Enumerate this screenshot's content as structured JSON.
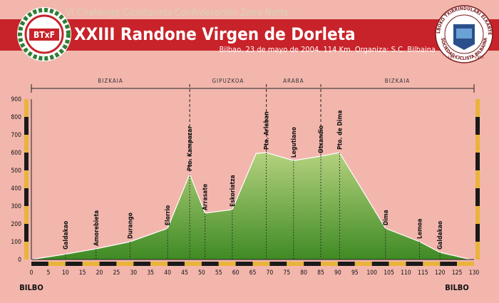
{
  "header": {
    "series_title": "VI Challenge Cicloturista Confederación Zona Norte",
    "event_title": "XXIII Randone Virgen de Dorleta",
    "subtitle": "Bilbao, 23 de mayo de 2004, 114 Km. Organiza: S.C. Bilbaina",
    "left_logo_letters": "BTxF",
    "right_logo_top": "BILBOKO TXIRRINDULARI ELKARTEA",
    "right_logo_bottom": "SOCIEDAD CICLISTA BILBAINA",
    "right_logo_year_left": "1895",
    "right_logo_year_right": "1995"
  },
  "colors": {
    "background": "#f2b6ad",
    "header_red": "#c8232a",
    "header_text": "#ffffff",
    "series_title": "#d8d2b8",
    "profile_fill_top": "#b4d27e",
    "profile_fill_bottom": "#3f8a24",
    "axis_yellow": "#e9b43a",
    "axis_black": "#1a1a1a"
  },
  "chart_data": {
    "type": "area",
    "title": "XXIII Randone Virgen de Dorleta",
    "xlabel": "",
    "ylabel": "",
    "xlim": [
      0,
      130
    ],
    "ylim": [
      0,
      900
    ],
    "x_ticks": [
      0,
      5,
      10,
      15,
      20,
      25,
      30,
      35,
      40,
      45,
      50,
      55,
      60,
      65,
      70,
      75,
      80,
      85,
      90,
      95,
      100,
      105,
      110,
      115,
      120,
      125,
      130
    ],
    "y_ticks": [
      0,
      100,
      200,
      300,
      400,
      500,
      600,
      700,
      800,
      900
    ],
    "grid": false,
    "series": [
      {
        "x": [
          0,
          10,
          19,
          29,
          40,
          46.5,
          51,
          59,
          66,
          69,
          77,
          85,
          90.5,
          104,
          114,
          120,
          129
        ],
        "values": [
          0,
          30,
          60,
          100,
          175,
          480,
          260,
          280,
          595,
          600,
          555,
          580,
          600,
          175,
          100,
          40,
          0
        ]
      }
    ],
    "regions": [
      {
        "name": "BIZKAIA",
        "from": 0,
        "to": 46.5
      },
      {
        "name": "GIPUZKOA",
        "from": 46.5,
        "to": 69
      },
      {
        "name": "ARABA",
        "from": 69,
        "to": 85
      },
      {
        "name": "BIZKAIA",
        "from": 85,
        "to": 130
      }
    ],
    "places": [
      {
        "name": "Galdakao",
        "x": 10,
        "y": 30
      },
      {
        "name": "Amorebieta",
        "x": 19,
        "y": 60
      },
      {
        "name": "Durango",
        "x": 29,
        "y": 100
      },
      {
        "name": "Elorrio",
        "x": 40,
        "y": 175
      },
      {
        "name": "Pto. Kampazar",
        "x": 46.5,
        "y": 480
      },
      {
        "name": "Arrasate",
        "x": 51,
        "y": 260
      },
      {
        "name": "Eskoriatza",
        "x": 59,
        "y": 280
      },
      {
        "name": "Pto. Arlaban",
        "x": 69,
        "y": 600
      },
      {
        "name": "Legutiano",
        "x": 77,
        "y": 555
      },
      {
        "name": "Otxandio",
        "x": 85,
        "y": 580
      },
      {
        "name": "Pto. de Dima",
        "x": 90.5,
        "y": 600
      },
      {
        "name": "Dima",
        "x": 104,
        "y": 175
      },
      {
        "name": "Lemoa",
        "x": 114,
        "y": 100
      },
      {
        "name": "Galdakao",
        "x": 120,
        "y": 40
      }
    ],
    "endpoints": {
      "start": "BILBO",
      "finish": "BILBO"
    }
  }
}
